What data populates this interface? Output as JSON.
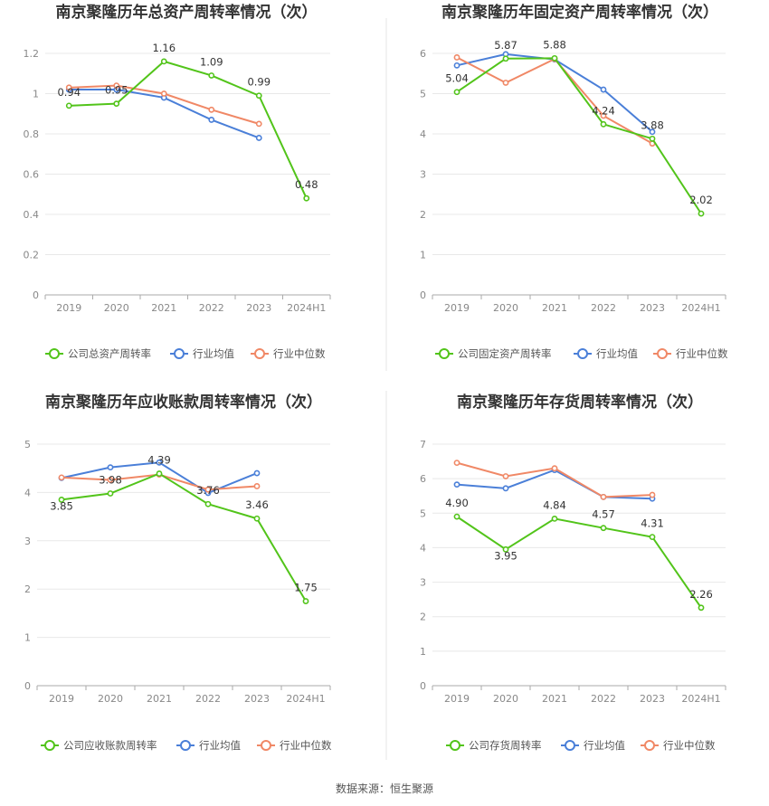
{
  "source": "数据来源：恒生聚源",
  "colors": {
    "company": "#52c41a",
    "avg": "#4a7fd8",
    "median": "#f08866",
    "grid": "#e8e8e8",
    "axis": "#aaaaaa",
    "divider": "#e6e6e6"
  },
  "chart_data": [
    {
      "type": "line",
      "title": "南京聚隆历年总资产周转率情况（次）",
      "categories": [
        "2019",
        "2020",
        "2021",
        "2022",
        "2023",
        "2024H1"
      ],
      "ylim": [
        0,
        1.2
      ],
      "yticks": [
        "0",
        "0.2",
        "0.4",
        "0.6",
        "0.8",
        "1",
        "1.2"
      ],
      "series": [
        {
          "name": "公司总资产周转率",
          "role": "company",
          "values": [
            0.94,
            0.95,
            1.16,
            1.09,
            0.99,
            0.48
          ],
          "labels": [
            "0.94",
            "0.95",
            "1.16",
            "1.09",
            "0.99",
            "0.48"
          ]
        },
        {
          "name": "行业均值",
          "role": "avg",
          "values": [
            1.02,
            1.02,
            0.98,
            0.87,
            0.78,
            null
          ]
        },
        {
          "name": "行业中位数",
          "role": "median",
          "values": [
            1.03,
            1.04,
            1.0,
            0.92,
            0.85,
            null
          ]
        }
      ]
    },
    {
      "type": "line",
      "title": "南京聚隆历年固定资产周转率情况（次）",
      "categories": [
        "2019",
        "2020",
        "2021",
        "2022",
        "2023",
        "2024H1"
      ],
      "ylim": [
        0,
        6
      ],
      "yticks": [
        "0",
        "1",
        "2",
        "3",
        "4",
        "5",
        "6"
      ],
      "series": [
        {
          "name": "公司固定资产周转率",
          "role": "company",
          "values": [
            5.04,
            5.87,
            5.88,
            4.24,
            3.88,
            2.02
          ],
          "labels": [
            "5.04",
            "5.87",
            "5.88",
            "4.24",
            "3.88",
            "2.02"
          ]
        },
        {
          "name": "行业均值",
          "role": "avg",
          "values": [
            5.7,
            5.98,
            5.85,
            5.1,
            4.05,
            null
          ]
        },
        {
          "name": "行业中位数",
          "role": "median",
          "values": [
            5.9,
            5.27,
            5.86,
            4.45,
            3.76,
            null
          ]
        }
      ]
    },
    {
      "type": "line",
      "title": "南京聚隆历年应收账款周转率情况（次）",
      "categories": [
        "2019",
        "2020",
        "2021",
        "2022",
        "2023",
        "2024H1"
      ],
      "ylim": [
        0,
        5
      ],
      "yticks": [
        "0",
        "1",
        "2",
        "3",
        "4",
        "5"
      ],
      "series": [
        {
          "name": "公司应收账款周转率",
          "role": "company",
          "values": [
            3.85,
            3.98,
            4.39,
            3.76,
            3.46,
            1.75
          ],
          "labels": [
            "3.85",
            "3.98",
            "4.39",
            "3.76",
            "3.46",
            "1.75"
          ]
        },
        {
          "name": "行业均值",
          "role": "avg",
          "values": [
            4.3,
            4.52,
            4.62,
            3.99,
            4.4,
            null
          ]
        },
        {
          "name": "行业中位数",
          "role": "median",
          "values": [
            4.31,
            4.26,
            4.37,
            4.06,
            4.13,
            null
          ]
        }
      ]
    },
    {
      "type": "line",
      "title": "南京聚隆历年存货周转率情况（次）",
      "categories": [
        "2019",
        "2020",
        "2021",
        "2022",
        "2023",
        "2024H1"
      ],
      "ylim": [
        0,
        7
      ],
      "yticks": [
        "0",
        "1",
        "2",
        "3",
        "4",
        "5",
        "6",
        "7"
      ],
      "series": [
        {
          "name": "公司存货周转率",
          "role": "company",
          "values": [
            4.9,
            3.95,
            4.84,
            4.57,
            4.31,
            2.26
          ],
          "labels": [
            "4.90",
            "3.95",
            "4.84",
            "4.57",
            "4.31",
            "2.26"
          ]
        },
        {
          "name": "行业均值",
          "role": "avg",
          "values": [
            5.83,
            5.72,
            6.25,
            5.47,
            5.42,
            null
          ]
        },
        {
          "name": "行业中位数",
          "role": "median",
          "values": [
            6.46,
            6.07,
            6.3,
            5.47,
            5.53,
            null
          ]
        }
      ]
    }
  ]
}
